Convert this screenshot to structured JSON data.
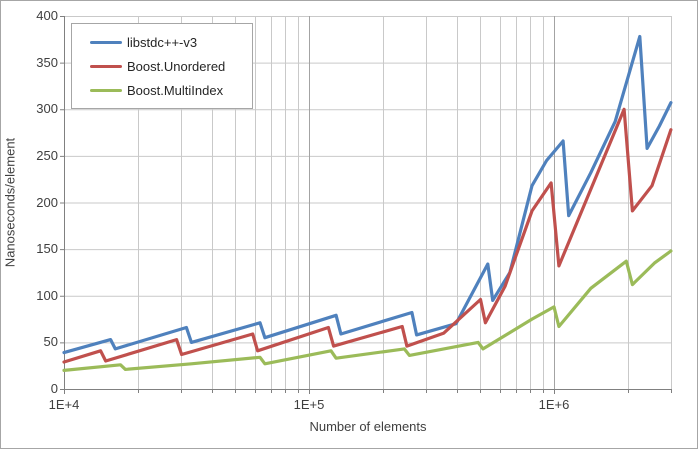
{
  "chart_data": {
    "type": "line",
    "title": "",
    "xlabel": "Number of elements",
    "ylabel": "Nanoseconds/element",
    "x_scale": "log10",
    "xlim": [
      10000,
      3000000
    ],
    "ylim": [
      0,
      400
    ],
    "y_ticks": [
      0,
      50,
      100,
      150,
      200,
      250,
      300,
      350,
      400
    ],
    "x_major_ticks": [
      {
        "value": 10000,
        "label": "1E+4"
      },
      {
        "value": 100000,
        "label": "1E+5"
      },
      {
        "value": 1000000,
        "label": "1E+6"
      }
    ],
    "x_minor_ticks": [
      20000,
      30000,
      40000,
      50000,
      60000,
      70000,
      80000,
      90000,
      200000,
      300000,
      400000,
      500000,
      600000,
      700000,
      800000,
      900000,
      2000000,
      3000000
    ],
    "grid": "horizontal every 50 ns; vertical at every log decade subdivision",
    "legend_position": "top-left-inside",
    "series": [
      {
        "name": "libstdc++-v3",
        "color": "#4F81BD",
        "points": [
          [
            10000,
            39
          ],
          [
            15500,
            53
          ],
          [
            16200,
            43
          ],
          [
            31600,
            66
          ],
          [
            33100,
            50
          ],
          [
            63100,
            71
          ],
          [
            66100,
            55
          ],
          [
            129000,
            79
          ],
          [
            135000,
            59
          ],
          [
            263000,
            82
          ],
          [
            275000,
            58
          ],
          [
            398000,
            70
          ],
          [
            537000,
            134
          ],
          [
            562000,
            95
          ],
          [
            661000,
            125
          ],
          [
            813000,
            218
          ],
          [
            933000,
            245
          ],
          [
            1089000,
            266
          ],
          [
            1148000,
            186
          ],
          [
            1413000,
            232
          ],
          [
            1778000,
            287
          ],
          [
            2239000,
            378
          ],
          [
            2399000,
            258
          ],
          [
            2692000,
            282
          ],
          [
            3000000,
            307
          ]
        ]
      },
      {
        "name": "Boost.Unordered",
        "color": "#C0504D",
        "points": [
          [
            10000,
            29
          ],
          [
            14100,
            41
          ],
          [
            14800,
            30
          ],
          [
            28800,
            53
          ],
          [
            30200,
            37
          ],
          [
            58900,
            59
          ],
          [
            61700,
            41
          ],
          [
            120000,
            66
          ],
          [
            126000,
            46
          ],
          [
            240000,
            67
          ],
          [
            251000,
            46
          ],
          [
            355000,
            60
          ],
          [
            501000,
            96
          ],
          [
            525000,
            71
          ],
          [
            631000,
            110
          ],
          [
            813000,
            191
          ],
          [
            973000,
            221
          ],
          [
            1047000,
            132
          ],
          [
            1932000,
            300
          ],
          [
            2089000,
            191
          ],
          [
            2512000,
            218
          ],
          [
            3000000,
            278
          ]
        ]
      },
      {
        "name": "Boost.MultiIndex",
        "color": "#9BBB59",
        "points": [
          [
            10000,
            20
          ],
          [
            17000,
            26
          ],
          [
            17800,
            21
          ],
          [
            33100,
            27
          ],
          [
            63100,
            34
          ],
          [
            66100,
            27
          ],
          [
            123000,
            41
          ],
          [
            129000,
            33
          ],
          [
            245000,
            43
          ],
          [
            257000,
            36
          ],
          [
            490000,
            50
          ],
          [
            513000,
            43
          ],
          [
            813000,
            75
          ],
          [
            1000000,
            88
          ],
          [
            1047000,
            67
          ],
          [
            1413000,
            108
          ],
          [
            1972000,
            137
          ],
          [
            2089000,
            112
          ],
          [
            2570000,
            135
          ],
          [
            3000000,
            148
          ]
        ]
      }
    ],
    "colors": {
      "grid_minor": "#c9c9c9",
      "grid_major_vertical": "#a3a3a3",
      "axis": "#808080",
      "tick_text": "#3f3f3f",
      "frame_border": "#a6a6a6",
      "background": "#ffffff"
    }
  }
}
